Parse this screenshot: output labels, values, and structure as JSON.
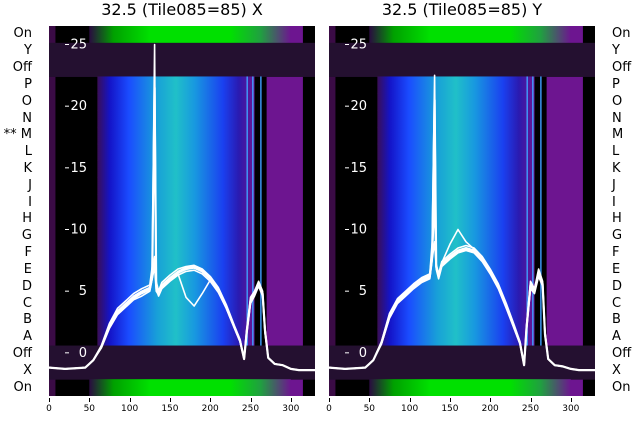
{
  "chart_data": [
    {
      "type": "line",
      "title": "32.5 (Tile085=85) X",
      "x_ticks": [
        "0",
        "50",
        "100",
        "150",
        "200",
        "250",
        "300"
      ],
      "y_ticks": [
        "0",
        "5",
        "10",
        "15",
        "20",
        "25"
      ],
      "xlim": [
        0,
        330
      ],
      "ylim": [
        -3.5,
        26.5
      ],
      "row_labels": [
        "On",
        "Y",
        "Off",
        "P",
        "O",
        "N",
        "M",
        "L",
        "K",
        "J",
        "I",
        "H",
        "G",
        "F",
        "E",
        "D",
        "C",
        "B",
        "A",
        "Off",
        "X",
        "On"
      ],
      "marked_row_label": "** M",
      "series_x": [
        0,
        20,
        45,
        55,
        65,
        75,
        85,
        95,
        105,
        115,
        125,
        128,
        131,
        133,
        136,
        140,
        150,
        160,
        170,
        180,
        190,
        200,
        210,
        220,
        230,
        237,
        242,
        245,
        250,
        255,
        260,
        265,
        268,
        272,
        280,
        290,
        300,
        310,
        330
      ],
      "series": [
        {
          "values": [
            -1.2,
            -1.3,
            -1.2,
            -0.6,
            0.5,
            2.2,
            3.3,
            3.9,
            4.5,
            4.9,
            5.2,
            6.5,
            21.5,
            5.5,
            4.8,
            5.4,
            6.0,
            6.5,
            6.8,
            6.9,
            6.6,
            6.0,
            5.1,
            3.7,
            2.1,
            1.0,
            -0.5,
            1.5,
            4.2,
            4.8,
            5.6,
            4.8,
            1.8,
            -0.4,
            -0.9,
            -1.0,
            -1.3,
            -1.4,
            -1.4
          ]
        },
        {
          "values": [
            -1.2,
            -1.3,
            -1.2,
            -0.6,
            0.6,
            2.4,
            3.6,
            4.2,
            4.8,
            5.2,
            5.5,
            7.0,
            25.0,
            5.8,
            5.0,
            5.7,
            6.3,
            6.8,
            7.0,
            7.1,
            6.8,
            6.2,
            5.3,
            3.9,
            2.2,
            1.1,
            -0.5,
            1.8,
            4.5,
            5.0,
            5.8,
            5.0,
            2.0,
            -0.4,
            -0.9,
            -1.0,
            -1.3,
            -1.4,
            -1.4
          ]
        },
        {
          "values": [
            -1.2,
            -1.3,
            -1.2,
            -0.6,
            0.4,
            2.0,
            3.1,
            3.7,
            4.3,
            4.6,
            5.0,
            6.0,
            7.5,
            5.2,
            4.6,
            5.2,
            5.8,
            6.3,
            6.6,
            6.7,
            6.4,
            5.8,
            4.9,
            3.6,
            2.0,
            0.9,
            -0.5,
            1.4,
            4.0,
            4.6,
            5.4,
            4.6,
            1.6,
            -0.4,
            -0.9,
            -1.0,
            -1.3,
            -1.4,
            -1.4
          ]
        },
        {
          "values": [
            -1.2,
            -1.3,
            -1.2,
            -0.6,
            0.5,
            2.3,
            3.4,
            4.0,
            4.6,
            5.0,
            5.3,
            6.2,
            7.8,
            5.4,
            4.9,
            5.5,
            6.1,
            6.6,
            6.9,
            7.0,
            6.7,
            6.1,
            5.2,
            3.8,
            2.1,
            1.0,
            -0.5,
            1.6,
            4.3,
            4.9,
            5.7,
            4.9,
            1.9,
            -0.4,
            -0.9,
            -1.0,
            -1.3,
            -1.4,
            -1.4
          ]
        },
        {
          "values": [
            -1.2,
            -1.3,
            -1.2,
            -0.6,
            0.5,
            2.1,
            3.2,
            3.8,
            4.4,
            4.8,
            5.1,
            6.0,
            7.0,
            5.0,
            4.7,
            5.3,
            5.9,
            6.4,
            4.5,
            3.8,
            4.8,
            5.9,
            5.0,
            3.6,
            2.0,
            0.9,
            -0.5,
            1.5,
            4.1,
            4.7,
            5.5,
            4.7,
            1.7,
            -0.4,
            -0.9,
            -1.0,
            -1.3,
            -1.4,
            -1.4
          ]
        }
      ]
    },
    {
      "type": "line",
      "title": "32.5 (Tile085=85) Y",
      "x_ticks": [
        "0",
        "50",
        "100",
        "150",
        "200",
        "250",
        "300"
      ],
      "y_ticks": [
        "0",
        "5",
        "10",
        "15",
        "20",
        "25"
      ],
      "xlim": [
        0,
        330
      ],
      "ylim": [
        -3.5,
        26.5
      ],
      "row_labels": [
        "On",
        "Y",
        "Off",
        "P",
        "O",
        "N",
        "M",
        "L",
        "K",
        "J",
        "I",
        "H",
        "G",
        "F",
        "E",
        "D",
        "C",
        "B",
        "A",
        "Off",
        "X",
        "On"
      ],
      "series_x": [
        0,
        20,
        45,
        55,
        65,
        75,
        85,
        95,
        105,
        115,
        125,
        128,
        131,
        133,
        136,
        140,
        150,
        160,
        170,
        180,
        190,
        200,
        210,
        220,
        230,
        237,
        242,
        245,
        250,
        255,
        260,
        265,
        268,
        272,
        280,
        290,
        300,
        310,
        330
      ],
      "series": [
        {
          "values": [
            -1.2,
            -1.3,
            -1.2,
            -0.6,
            0.8,
            3.0,
            4.2,
            4.8,
            5.4,
            5.9,
            6.2,
            8.0,
            20.5,
            7.0,
            6.2,
            7.2,
            7.8,
            8.3,
            8.5,
            8.3,
            7.6,
            6.6,
            5.4,
            3.8,
            2.0,
            0.8,
            -1.0,
            2.0,
            5.5,
            5.0,
            6.5,
            5.6,
            1.5,
            -0.5,
            -1.0,
            -1.1,
            -1.3,
            -1.4,
            -1.4
          ]
        },
        {
          "values": [
            -1.2,
            -1.3,
            -1.2,
            -0.6,
            0.9,
            3.2,
            4.4,
            5.0,
            5.6,
            6.1,
            6.4,
            9.0,
            22.5,
            7.2,
            6.4,
            7.4,
            8.0,
            8.5,
            8.7,
            8.5,
            7.8,
            6.8,
            5.6,
            4.0,
            2.2,
            0.9,
            -1.0,
            2.2,
            5.8,
            5.2,
            6.8,
            5.8,
            1.7,
            -0.5,
            -1.0,
            -1.1,
            -1.3,
            -1.4,
            -1.4
          ]
        },
        {
          "values": [
            -1.2,
            -1.3,
            -1.2,
            -0.6,
            0.7,
            2.8,
            4.0,
            4.6,
            5.2,
            5.7,
            6.0,
            7.5,
            15.0,
            6.8,
            6.0,
            7.0,
            7.6,
            8.1,
            8.3,
            8.1,
            7.4,
            6.4,
            5.2,
            3.6,
            1.9,
            0.7,
            -1.0,
            1.8,
            5.2,
            4.8,
            6.2,
            5.4,
            1.4,
            -0.5,
            -1.0,
            -1.1,
            -1.3,
            -1.4,
            -1.4
          ]
        },
        {
          "values": [
            -1.2,
            -1.3,
            -1.2,
            -0.6,
            0.8,
            3.1,
            4.3,
            4.9,
            5.5,
            6.0,
            6.3,
            7.8,
            12.0,
            7.0,
            6.3,
            7.3,
            8.8,
            10.0,
            9.0,
            8.4,
            7.7,
            6.7,
            5.5,
            3.9,
            2.1,
            0.8,
            -1.0,
            2.1,
            5.6,
            5.1,
            6.6,
            5.7,
            1.6,
            -0.5,
            -1.0,
            -1.1,
            -1.3,
            -1.4,
            -1.4
          ]
        },
        {
          "values": [
            -1.2,
            -1.3,
            -1.2,
            -0.6,
            0.7,
            2.9,
            4.1,
            4.7,
            5.3,
            5.8,
            6.1,
            7.6,
            9.0,
            6.9,
            6.1,
            7.1,
            7.7,
            8.2,
            8.4,
            8.2,
            7.5,
            6.5,
            5.3,
            3.7,
            2.0,
            0.8,
            -1.0,
            1.9,
            5.4,
            4.9,
            6.4,
            5.5,
            1.5,
            -0.5,
            -1.0,
            -1.1,
            -1.3,
            -1.4,
            -1.4
          ]
        }
      ]
    }
  ],
  "colors": {
    "curve": "#ffffff",
    "heatmap_low": "#000000",
    "heatmap_mid": "#2222ff",
    "heatmap_high": "#00dd00",
    "edge_band": "#7a0f9a"
  }
}
